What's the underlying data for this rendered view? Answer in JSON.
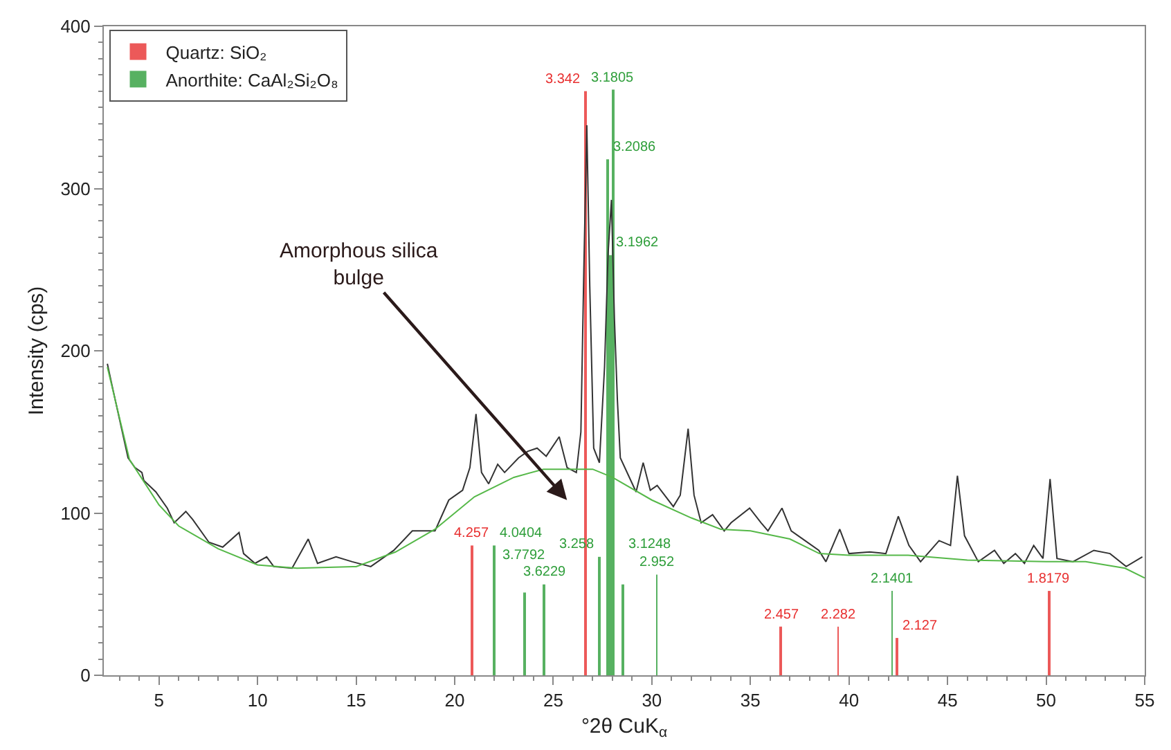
{
  "chart_data": {
    "type": "line",
    "xlabel": "°2θ CuK$_{α}$",
    "ylabel": "Intensity (cps)",
    "xlim": [
      2.2,
      55
    ],
    "ylim": [
      0,
      400
    ],
    "xticks": [
      {
        "value": 3,
        "label": null
      },
      {
        "value": 4,
        "label": null
      },
      5,
      {
        "value": 6,
        "label": null
      },
      {
        "value": 7,
        "label": null
      },
      {
        "value": 8,
        "label": null
      },
      {
        "value": 9,
        "label": null
      },
      10,
      {
        "value": 11,
        "label": null
      },
      {
        "value": 12,
        "label": null
      },
      {
        "value": 13,
        "label": null
      },
      {
        "value": 14,
        "label": null
      },
      15,
      {
        "value": 16,
        "label": null
      },
      {
        "value": 17,
        "label": null
      },
      {
        "value": 18,
        "label": null
      },
      {
        "value": 19,
        "label": null
      },
      20,
      {
        "value": 21,
        "label": null
      },
      {
        "value": 22,
        "label": null
      },
      {
        "value": 23,
        "label": null
      },
      {
        "value": 24,
        "label": null
      },
      25,
      {
        "value": 26,
        "label": null
      },
      {
        "value": 27,
        "label": null
      },
      {
        "value": 28,
        "label": null
      },
      {
        "value": 29,
        "label": null
      },
      30,
      {
        "value": 31,
        "label": null
      },
      {
        "value": 32,
        "label": null
      },
      {
        "value": 33,
        "label": null
      },
      {
        "value": 34,
        "label": null
      },
      35,
      {
        "value": 36,
        "label": null
      },
      {
        "value": 37,
        "label": null
      },
      {
        "value": 38,
        "label": null
      },
      {
        "value": 39,
        "label": null
      },
      40,
      {
        "value": 41,
        "label": null
      },
      {
        "value": 42,
        "label": null
      },
      {
        "value": 43,
        "label": null
      },
      {
        "value": 44,
        "label": null
      },
      45,
      {
        "value": 46,
        "label": null
      },
      {
        "value": 47,
        "label": null
      },
      {
        "value": 48,
        "label": null
      },
      {
        "value": 49,
        "label": null
      },
      50,
      {
        "value": 51,
        "label": null
      },
      {
        "value": 52,
        "label": null
      },
      {
        "value": 53,
        "label": null
      },
      {
        "value": 54,
        "label": null
      },
      55
    ],
    "yticks": [
      0,
      {
        "value": 10,
        "label": null
      },
      {
        "value": 20,
        "label": null
      },
      {
        "value": 30,
        "label": null
      },
      {
        "value": 40,
        "label": null
      },
      {
        "value": 50,
        "label": null
      },
      {
        "value": 60,
        "label": null
      },
      {
        "value": 70,
        "label": null
      },
      {
        "value": 80,
        "label": null
      },
      {
        "value": 90,
        "label": null
      },
      100,
      {
        "value": 110,
        "label": null
      },
      {
        "value": 120,
        "label": null
      },
      {
        "value": 130,
        "label": null
      },
      {
        "value": 140,
        "label": null
      },
      {
        "value": 150,
        "label": null
      },
      {
        "value": 160,
        "label": null
      },
      {
        "value": 170,
        "label": null
      },
      {
        "value": 180,
        "label": null
      },
      {
        "value": 190,
        "label": null
      },
      200,
      {
        "value": 210,
        "label": null
      },
      {
        "value": 220,
        "label": null
      },
      {
        "value": 230,
        "label": null
      },
      {
        "value": 240,
        "label": null
      },
      {
        "value": 250,
        "label": null
      },
      {
        "value": 260,
        "label": null
      },
      {
        "value": 270,
        "label": null
      },
      {
        "value": 280,
        "label": null
      },
      {
        "value": 290,
        "label": null
      },
      300,
      {
        "value": 310,
        "label": null
      },
      {
        "value": 320,
        "label": null
      },
      {
        "value": 330,
        "label": null
      },
      {
        "value": 340,
        "label": null
      },
      {
        "value": 350,
        "label": null
      },
      {
        "value": 360,
        "label": null
      },
      {
        "value": 370,
        "label": null
      },
      {
        "value": 380,
        "label": null
      },
      {
        "value": 390,
        "label": null
      },
      400
    ],
    "legend": "top left",
    "marker": "none",
    "line_style": "solid",
    "series": [
      {
        "color": "#333333",
        "x": [
          2.38,
          2.61,
          3.43,
          3.78,
          4.13,
          4.23,
          4.84,
          5.42,
          5.77,
          6.36,
          6.71,
          7.53,
          8.23,
          9.06,
          9.29,
          9.87,
          10.46,
          10.82,
          11.75,
          12.57,
          13.04,
          13.98,
          14.8,
          15.74,
          16.91,
          17.85,
          19.0,
          19.7,
          20.4,
          20.77,
          21.08,
          21.36,
          21.72,
          22.18,
          22.53,
          23.24,
          23.7,
          24.18,
          24.64,
          25.3,
          25.7,
          26.17,
          26.4,
          26.55,
          26.7,
          26.85,
          27.05,
          27.34,
          27.6,
          27.78,
          27.95,
          28.1,
          28.25,
          28.4,
          29.2,
          29.56,
          29.92,
          30.27,
          31.09,
          31.44,
          31.84,
          32.14,
          32.5,
          33.08,
          33.67,
          34.02,
          34.96,
          35.54,
          35.89,
          36.6,
          37.07,
          37.77,
          38.47,
          38.83,
          39.53,
          40.0,
          41.05,
          41.87,
          42.5,
          43.04,
          43.63,
          44.57,
          45.15,
          45.5,
          45.86,
          46.56,
          47.38,
          47.85,
          48.44,
          48.9,
          49.37,
          49.84,
          50.2,
          50.55,
          51.36,
          52.42,
          53.24,
          54.06,
          54.88
        ],
        "values": [
          192,
          179,
          134,
          128,
          125,
          120,
          113,
          103,
          94,
          101,
          96,
          82,
          79,
          88,
          75,
          69,
          73,
          67,
          66,
          84,
          69,
          73,
          70,
          67,
          77,
          89,
          89,
          108,
          114,
          128,
          161,
          125,
          118,
          130,
          125,
          134,
          138,
          140,
          135,
          147,
          128,
          125,
          150,
          250,
          339,
          240,
          140,
          131,
          190,
          260,
          293,
          220,
          170,
          134,
          113,
          131,
          114,
          117,
          104,
          111,
          152,
          111,
          94,
          99,
          89,
          94,
          103,
          94,
          89,
          103,
          89,
          83,
          77,
          70,
          90,
          75,
          76,
          75,
          98,
          80,
          70,
          83,
          80,
          123,
          86,
          70,
          77,
          69,
          75,
          69,
          80,
          72,
          121,
          72,
          70,
          77,
          75,
          67,
          73
        ]
      },
      {
        "color": "#55b848",
        "x": [
          2.38,
          3.5,
          5,
          6,
          8,
          10,
          12,
          15,
          17,
          19,
          21,
          23,
          24.5,
          26,
          27,
          28,
          30,
          32,
          33.5,
          35,
          37,
          38.5,
          40,
          43,
          46,
          50,
          52,
          54,
          55
        ],
        "values": [
          190,
          133,
          105,
          92,
          78,
          68,
          66,
          67,
          76,
          90,
          110,
          122,
          127,
          127,
          127,
          122,
          108,
          97,
          90,
          89,
          84,
          75,
          74,
          74,
          71,
          70,
          70,
          66,
          60
        ]
      },
      {
        "type": "bar",
        "name": "Quartz: SiO₂",
        "color": "#e83030",
        "x": [
          20.85,
          26.65,
          36.54,
          39.45,
          42.46,
          50.14
        ],
        "values": [
          80,
          360,
          30,
          30,
          23,
          52
        ]
      },
      {
        "type": "bar",
        "name": "Anorthite: CaAl₂Si₂O₈",
        "color": "#2e9e3a",
        "x": [
          21.98,
          23.52,
          24.55,
          27.35,
          27.78,
          27.89,
          28.03,
          28.54,
          30.25,
          42.19
        ],
        "values": [
          80,
          51,
          56,
          73,
          318,
          259,
          361,
          56,
          62,
          52
        ]
      }
    ],
    "annotations": [
      "Amorphous silica\nbulge",
      {
        "text": "4.257",
        "x": 20.85,
        "y": 80
      },
      {
        "text": "3.342",
        "x": 26.65,
        "y": 360
      },
      {
        "text": "2.457",
        "x": 36.54,
        "y": 30
      },
      {
        "text": "2.282",
        "x": 39.45,
        "y": 30
      },
      {
        "text": "2.127",
        "x": 42.46,
        "y": 23
      },
      {
        "text": "1.8179",
        "x": 50.14,
        "y": 52
      },
      {
        "text": "4.0404",
        "x": 21.98,
        "y": 80
      },
      {
        "text": "3.7792",
        "x": 23.52,
        "y": 51
      },
      {
        "text": "3.6229",
        "x": 24.55,
        "y": 56
      },
      {
        "text": "3.258",
        "x": 27.35,
        "y": 73
      },
      {
        "text": "3.2086",
        "x": 27.78,
        "y": 318
      },
      {
        "text": "3.1962",
        "x": 27.89,
        "y": 259
      },
      {
        "text": "3.1805",
        "x": 28.03,
        "y": 361
      },
      {
        "text": "3.1248",
        "x": 28.54,
        "y": 56
      },
      {
        "text": "2.952",
        "x": 30.25,
        "y": 62
      },
      {
        "text": "2.1401",
        "x": 42.19,
        "y": 52
      }
    ]
  }
}
